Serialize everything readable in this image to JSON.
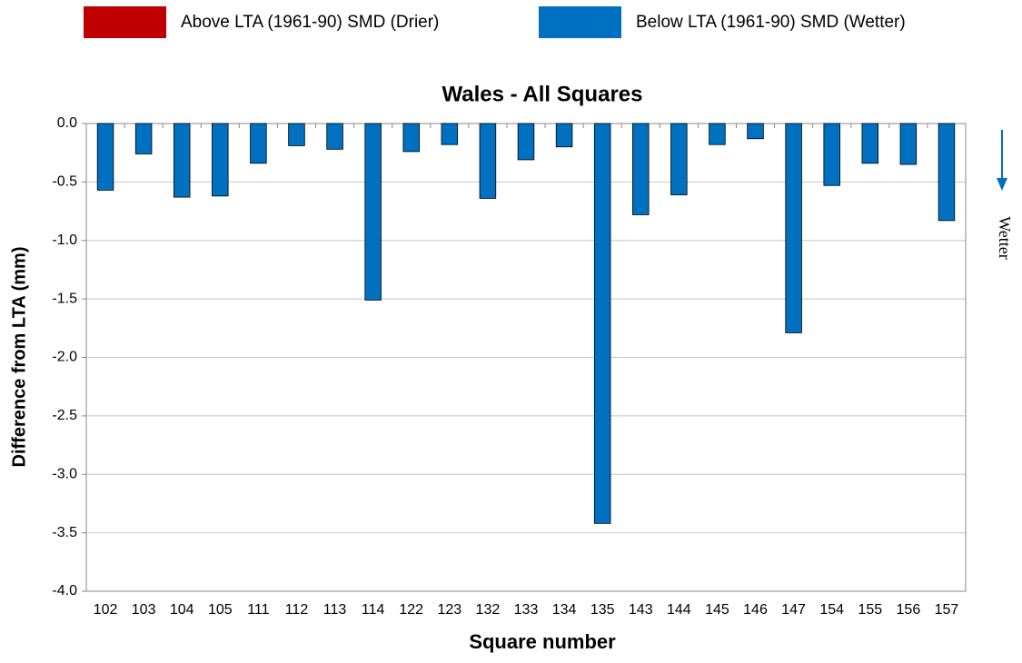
{
  "chart_data": {
    "type": "bar",
    "title": "Wales - All Squares",
    "x_label": "Square number",
    "y_label": "Difference from LTA (mm)",
    "annotation": "Wetter",
    "categories": [
      "102",
      "103",
      "104",
      "105",
      "111",
      "112",
      "113",
      "114",
      "122",
      "123",
      "132",
      "133",
      "134",
      "135",
      "143",
      "144",
      "145",
      "146",
      "147",
      "154",
      "155",
      "156",
      "157"
    ],
    "series": [
      {
        "name": "Above LTA (1961-90)  SMD (Drier)",
        "color": "#c00000",
        "values": [
          null,
          null,
          null,
          null,
          null,
          null,
          null,
          null,
          null,
          null,
          null,
          null,
          null,
          null,
          null,
          null,
          null,
          null,
          null,
          null,
          null,
          null,
          null
        ]
      },
      {
        "name": "Below LTA (1961-90) SMD (Wetter)",
        "color": "#0070c0",
        "values": [
          -0.57,
          -0.26,
          -0.63,
          -0.62,
          -0.34,
          -0.19,
          -0.22,
          -1.51,
          -0.24,
          -0.18,
          -0.64,
          -0.31,
          -0.2,
          -3.42,
          -0.78,
          -0.61,
          -0.18,
          -0.13,
          -1.79,
          -0.53,
          -0.34,
          -0.35,
          -0.83
        ]
      }
    ],
    "ylim": [
      -4,
      0
    ],
    "yticks": [
      {
        "value": 0,
        "label": "0.0"
      },
      -0.5,
      {
        "value": -1,
        "label": "-1.0"
      },
      -1.5,
      {
        "value": -2,
        "label": "-2.0"
      },
      -2.5,
      {
        "value": -3,
        "label": "-3.0"
      },
      -3.5,
      {
        "value": -4,
        "label": "-4.0"
      }
    ],
    "grid": true,
    "legend": "top"
  }
}
